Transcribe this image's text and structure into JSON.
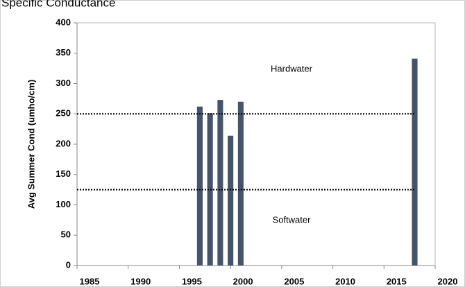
{
  "chart_data": {
    "type": "bar",
    "title": "Specific Conductance",
    "y_label": "Avg Summer Cond (umho/cm)",
    "x": [
      1997,
      1998,
      1999,
      2000,
      2001,
      2018
    ],
    "values": [
      262,
      251,
      273,
      214,
      270,
      341
    ],
    "color": "#44546a",
    "xlim": [
      1985,
      2020
    ],
    "xticks": [
      1985,
      1990,
      1995,
      2000,
      2005,
      2010,
      2015,
      2020
    ],
    "ylim": [
      0,
      400
    ],
    "yticks": [
      0,
      50,
      100,
      150,
      200,
      250,
      300,
      350,
      400
    ],
    "reference_lines": [
      250,
      125
    ],
    "annotations": [
      "Hardwater",
      "Softwater"
    ]
  }
}
